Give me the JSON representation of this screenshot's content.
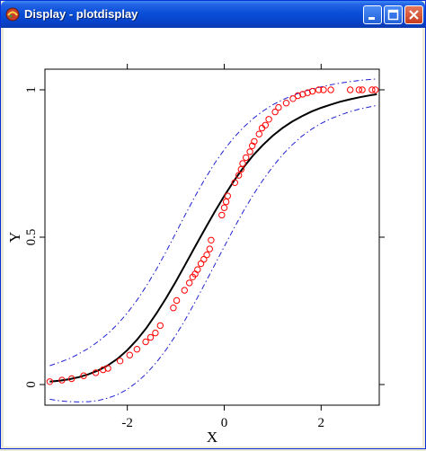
{
  "window": {
    "title": "Display - plotdisplay",
    "controls": [
      "minimize-icon",
      "maximize-icon",
      "close-icon"
    ]
  },
  "chart_data": {
    "type": "scatter",
    "xlabel": "X",
    "ylabel": "Y",
    "xlim": [
      -3.7,
      3.2
    ],
    "ylim": [
      -0.07,
      1.07
    ],
    "xticks": [
      -2,
      0,
      2
    ],
    "xtick_labels": [
      "-2",
      "0",
      "2"
    ],
    "yticks": [
      0,
      0.5,
      1
    ],
    "ytick_labels": [
      "0",
      "0.5",
      "1"
    ],
    "grid": false,
    "colors": {
      "points": "#ff0000",
      "fit": "#000000",
      "band": "#2020d0"
    },
    "series": [
      {
        "type": "line",
        "style": "solid",
        "x": [
          -3.6,
          -3.4,
          -3.2,
          -3.0,
          -2.8,
          -2.6,
          -2.4,
          -2.2,
          -2.0,
          -1.8,
          -1.6,
          -1.4,
          -1.2,
          -1.0,
          -0.8,
          -0.6,
          -0.4,
          -0.2,
          0.0,
          0.2,
          0.4,
          0.6,
          0.8,
          1.0,
          1.2,
          1.4,
          1.6,
          1.8,
          2.0,
          2.2,
          2.4,
          2.6,
          2.8,
          3.0,
          3.15
        ],
        "y": [
          0.01,
          0.013,
          0.018,
          0.025,
          0.035,
          0.048,
          0.065,
          0.088,
          0.117,
          0.152,
          0.193,
          0.241,
          0.293,
          0.349,
          0.408,
          0.468,
          0.527,
          0.585,
          0.64,
          0.691,
          0.737,
          0.778,
          0.813,
          0.844,
          0.87,
          0.892,
          0.91,
          0.926,
          0.939,
          0.95,
          0.96,
          0.968,
          0.975,
          0.981,
          0.985
        ]
      },
      {
        "type": "line",
        "style": "dashdot",
        "x": [
          -3.6,
          -3.4,
          -3.2,
          -3.0,
          -2.8,
          -2.6,
          -2.4,
          -2.2,
          -2.0,
          -1.8,
          -1.6,
          -1.4,
          -1.2,
          -1.0,
          -0.8,
          -0.6,
          -0.4,
          -0.2,
          0.0,
          0.2,
          0.4,
          0.6,
          0.8,
          1.0,
          1.2,
          1.4,
          1.6,
          1.8,
          2.0,
          2.2,
          2.4,
          2.6,
          2.8,
          3.0,
          3.15
        ],
        "y": [
          0.064,
          0.075,
          0.088,
          0.104,
          0.123,
          0.146,
          0.173,
          0.205,
          0.243,
          0.286,
          0.336,
          0.391,
          0.451,
          0.514,
          0.577,
          0.639,
          0.697,
          0.75,
          0.797,
          0.838,
          0.873,
          0.903,
          0.928,
          0.949,
          0.966,
          0.98,
          0.992,
          1.002,
          1.01,
          1.017,
          1.023,
          1.028,
          1.032,
          1.035,
          1.037
        ]
      },
      {
        "type": "line",
        "style": "dashdot",
        "x": [
          -3.6,
          -3.4,
          -3.2,
          -3.0,
          -2.8,
          -2.6,
          -2.4,
          -2.2,
          -2.0,
          -1.8,
          -1.6,
          -1.4,
          -1.2,
          -1.0,
          -0.8,
          -0.6,
          -0.4,
          -0.2,
          0.0,
          0.2,
          0.4,
          0.6,
          0.8,
          1.0,
          1.2,
          1.4,
          1.6,
          1.8,
          2.0,
          2.2,
          2.4,
          2.6,
          2.8,
          3.0,
          3.15
        ],
        "y": [
          -0.05,
          -0.055,
          -0.058,
          -0.059,
          -0.058,
          -0.054,
          -0.046,
          -0.034,
          -0.016,
          0.008,
          0.038,
          0.075,
          0.118,
          0.167,
          0.221,
          0.28,
          0.342,
          0.405,
          0.468,
          0.53,
          0.589,
          0.644,
          0.694,
          0.739,
          0.779,
          0.813,
          0.842,
          0.866,
          0.886,
          0.902,
          0.915,
          0.926,
          0.935,
          0.942,
          0.947
        ]
      },
      {
        "type": "scatter",
        "marker": "circle",
        "points": [
          [
            -3.6,
            0.01
          ],
          [
            -3.35,
            0.015
          ],
          [
            -3.15,
            0.02
          ],
          [
            -2.9,
            0.03
          ],
          [
            -2.65,
            0.04
          ],
          [
            -2.5,
            0.05
          ],
          [
            -2.4,
            0.055
          ],
          [
            -2.15,
            0.08
          ],
          [
            -1.95,
            0.1
          ],
          [
            -1.8,
            0.12
          ],
          [
            -1.62,
            0.145
          ],
          [
            -1.52,
            0.16
          ],
          [
            -1.42,
            0.175
          ],
          [
            -1.32,
            0.2
          ],
          [
            -1.05,
            0.26
          ],
          [
            -0.98,
            0.285
          ],
          [
            -0.82,
            0.32
          ],
          [
            -0.72,
            0.345
          ],
          [
            -0.65,
            0.365
          ],
          [
            -0.6,
            0.375
          ],
          [
            -0.55,
            0.39
          ],
          [
            -0.48,
            0.41
          ],
          [
            -0.42,
            0.425
          ],
          [
            -0.36,
            0.44
          ],
          [
            -0.3,
            0.46
          ],
          [
            -0.27,
            0.49
          ],
          [
            -0.05,
            0.575
          ],
          [
            0.0,
            0.6
          ],
          [
            0.04,
            0.62
          ],
          [
            0.07,
            0.64
          ],
          [
            0.22,
            0.685
          ],
          [
            0.3,
            0.71
          ],
          [
            0.35,
            0.73
          ],
          [
            0.38,
            0.75
          ],
          [
            0.45,
            0.77
          ],
          [
            0.53,
            0.79
          ],
          [
            0.58,
            0.81
          ],
          [
            0.62,
            0.825
          ],
          [
            0.72,
            0.85
          ],
          [
            0.78,
            0.87
          ],
          [
            0.85,
            0.88
          ],
          [
            0.92,
            0.9
          ],
          [
            1.05,
            0.925
          ],
          [
            1.12,
            0.94
          ],
          [
            1.28,
            0.955
          ],
          [
            1.42,
            0.97
          ],
          [
            1.52,
            0.98
          ],
          [
            1.62,
            0.985
          ],
          [
            1.72,
            0.99
          ],
          [
            1.82,
            0.995
          ],
          [
            1.95,
            1.0
          ],
          [
            2.05,
            1.0
          ],
          [
            2.2,
            1.0
          ],
          [
            2.6,
            1.0
          ],
          [
            2.78,
            1.0
          ],
          [
            2.85,
            1.0
          ],
          [
            3.05,
            1.0
          ],
          [
            3.12,
            1.0
          ]
        ]
      }
    ]
  }
}
